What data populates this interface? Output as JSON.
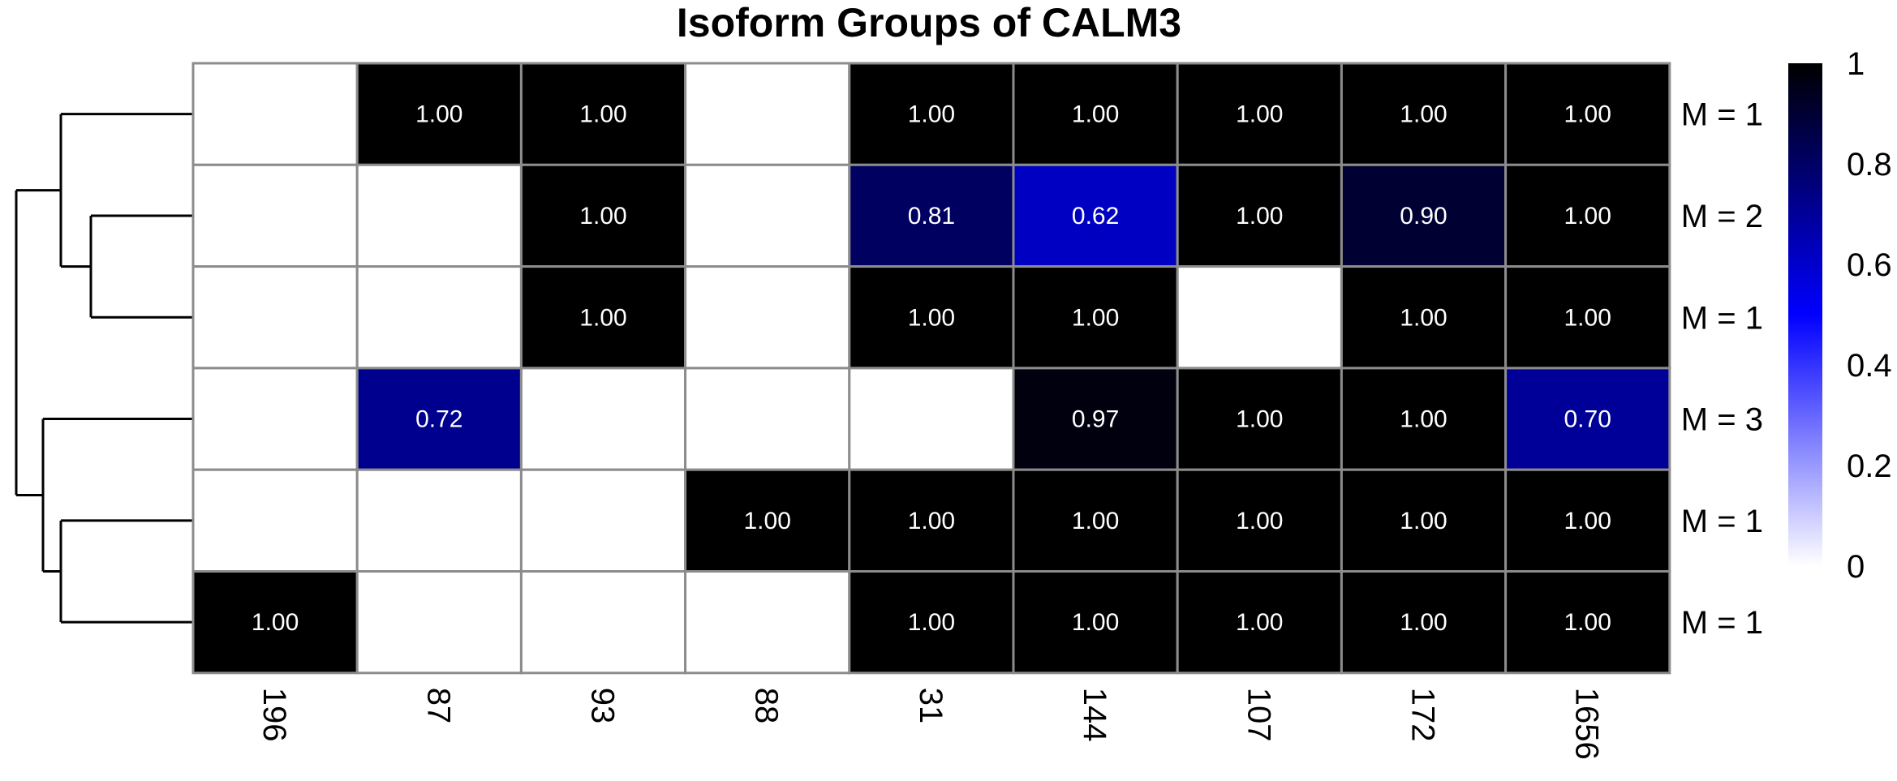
{
  "chart_data": {
    "type": "heatmap",
    "title": "Isoform Groups of CALM3",
    "columns": [
      "196",
      "87",
      "93",
      "88",
      "31",
      "144",
      "107",
      "172",
      "1656"
    ],
    "rows": [
      "M = 1",
      "M = 2",
      "M = 1",
      "M = 3",
      "M = 1",
      "M = 1"
    ],
    "values": [
      [
        null,
        1.0,
        1.0,
        null,
        1.0,
        1.0,
        1.0,
        1.0,
        1.0
      ],
      [
        null,
        null,
        1.0,
        null,
        0.81,
        0.62,
        1.0,
        0.9,
        1.0
      ],
      [
        null,
        null,
        1.0,
        null,
        1.0,
        1.0,
        null,
        1.0,
        1.0
      ],
      [
        null,
        0.72,
        null,
        null,
        null,
        0.97,
        1.0,
        1.0,
        0.7
      ],
      [
        null,
        null,
        null,
        1.0,
        1.0,
        1.0,
        1.0,
        1.0,
        1.0
      ],
      [
        1.0,
        null,
        null,
        null,
        1.0,
        1.0,
        1.0,
        1.0,
        1.0
      ]
    ],
    "value_format_decimals": 2,
    "colorbar": {
      "min": 0,
      "max": 1,
      "ticks": [
        "0",
        "0.2",
        "0.4",
        "0.6",
        "0.8",
        "1"
      ],
      "colors": [
        "#ffffff",
        "#0000ff",
        "#000000"
      ]
    },
    "dendrogram": {
      "side": "left",
      "structure": "((row1,(row2,row3)),(row4,(row5,row6)))"
    },
    "grid_color": "#8c8c8c"
  }
}
